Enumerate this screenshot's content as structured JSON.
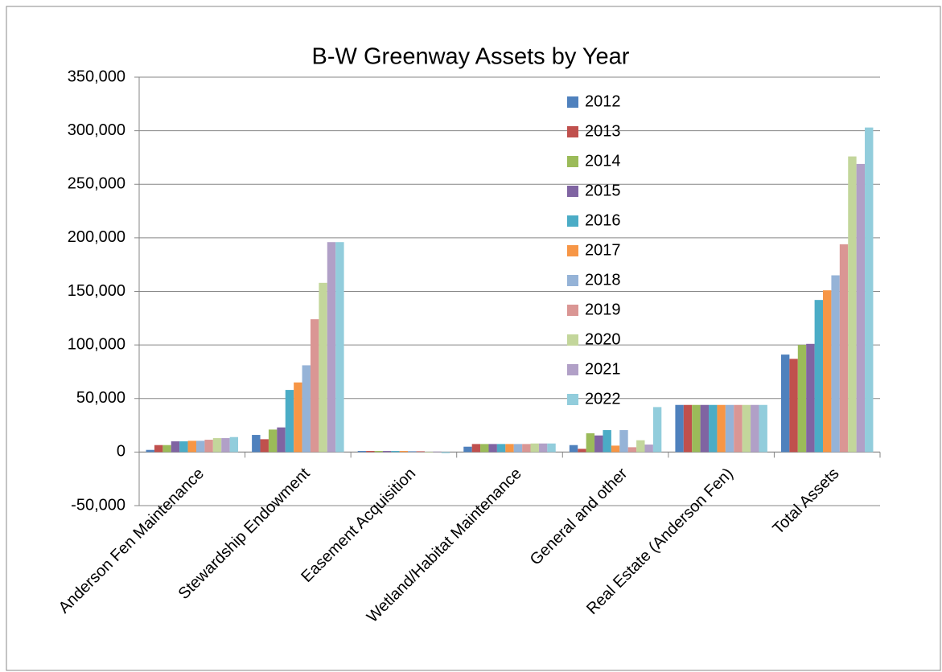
{
  "chart_data": {
    "type": "bar",
    "title": "B-W Greenway Assets by Year",
    "categories": [
      "Anderson Fen Maintenance",
      "Stewardship Endowment",
      "Easement Acquisition",
      "Wetland/Habitat Maintenance",
      "General and other",
      "Real Estate (Anderson Fen)",
      "Total Assets"
    ],
    "series": [
      {
        "name": "2012",
        "color": "#4F81BD",
        "values": [
          2000,
          16000,
          1000,
          5000,
          6500,
          44000,
          91000
        ]
      },
      {
        "name": "2013",
        "color": "#C0504D",
        "values": [
          6500,
          12000,
          1000,
          7500,
          3000,
          44000,
          87000
        ]
      },
      {
        "name": "2014",
        "color": "#9BBB59",
        "values": [
          6500,
          21000,
          1000,
          7500,
          17500,
          44000,
          100000
        ]
      },
      {
        "name": "2015",
        "color": "#8064A2",
        "values": [
          10000,
          23000,
          1000,
          7500,
          15500,
          44000,
          101000
        ]
      },
      {
        "name": "2016",
        "color": "#4BACC6",
        "values": [
          10000,
          58000,
          1000,
          7500,
          20500,
          44000,
          142000
        ]
      },
      {
        "name": "2017",
        "color": "#F79646",
        "values": [
          10500,
          65000,
          1000,
          7500,
          6000,
          44000,
          151000
        ]
      },
      {
        "name": "2018",
        "color": "#95B3D7",
        "values": [
          10500,
          81000,
          1000,
          7500,
          20500,
          44000,
          165000
        ]
      },
      {
        "name": "2019",
        "color": "#DA9694",
        "values": [
          11500,
          124000,
          1000,
          7500,
          4500,
          44000,
          194000
        ]
      },
      {
        "name": "2020",
        "color": "#C3D69B",
        "values": [
          13000,
          158000,
          -500,
          8000,
          11000,
          44000,
          276000
        ]
      },
      {
        "name": "2021",
        "color": "#B1A0C7",
        "values": [
          13000,
          196000,
          500,
          8000,
          7000,
          44000,
          269000
        ]
      },
      {
        "name": "2022",
        "color": "#92CDDC",
        "values": [
          14000,
          196000,
          -1000,
          8000,
          42000,
          44000,
          303000
        ]
      }
    ],
    "ylim": [
      -50000,
      350000
    ],
    "yticks": [
      {
        "value": -50000,
        "label": "-50,000"
      },
      0,
      {
        "value": 50000,
        "label": "50,000"
      },
      {
        "value": 100000,
        "label": "100,000"
      },
      {
        "value": 150000,
        "label": "150,000"
      },
      {
        "value": 200000,
        "label": "200,000"
      },
      {
        "value": 250000,
        "label": "250,000"
      },
      {
        "value": 300000,
        "label": "300,000"
      },
      {
        "value": 350000,
        "label": "350,000"
      }
    ],
    "grid": true,
    "legend": "top-right"
  }
}
